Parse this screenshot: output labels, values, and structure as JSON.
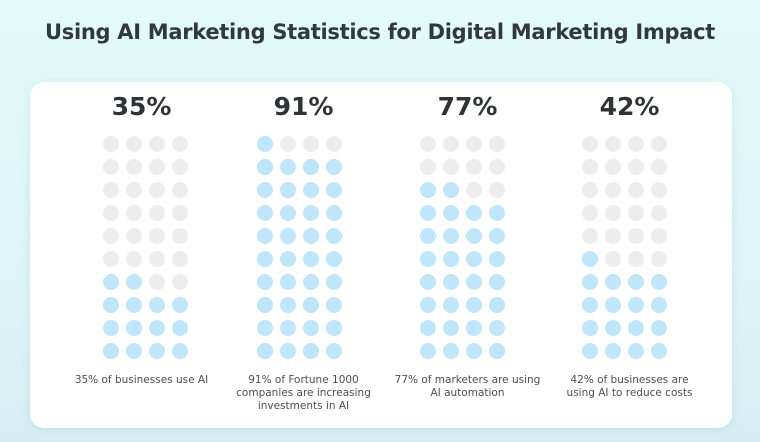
{
  "title": "Using AI Marketing Statistics for Digital Marketing Impact",
  "colors": {
    "filled_dot": "#bfe6fa",
    "empty_dot": "#ededed",
    "background": "#e2fbf9",
    "card": "#ffffff",
    "text": "#33383c"
  },
  "stats": [
    {
      "value": "35%",
      "caption": "35% of businesses use AI",
      "filled": 14,
      "total": 40
    },
    {
      "value": "91%",
      "caption": "91% of Fortune 1000 companies are increasing investments in AI",
      "filled": 37,
      "total": 40
    },
    {
      "value": "77%",
      "caption": "77% of marketers are using AI automation",
      "filled": 30,
      "total": 40
    },
    {
      "value": "42%",
      "caption": "42% of businesses are using AI to reduce costs",
      "filled": 17,
      "total": 40
    }
  ],
  "chart_data": {
    "type": "bar",
    "subtype": "waffle/pictogram (4 columns x 10 rows of dots each)",
    "title": "Using AI Marketing Statistics for Digital Marketing Impact",
    "categories": [
      "35% of businesses use AI",
      "91% of Fortune 1000 companies are increasing investments in AI",
      "77% of marketers are using AI automation",
      "42% of businesses are using AI to reduce costs"
    ],
    "values": [
      35,
      91,
      77,
      42
    ],
    "unit": "%",
    "filled_dots": [
      14,
      37,
      30,
      17
    ],
    "dots_per_chart": 40,
    "xlabel": "",
    "ylabel": "",
    "ylim": [
      0,
      100
    ],
    "legend": "none",
    "grid": false
  }
}
